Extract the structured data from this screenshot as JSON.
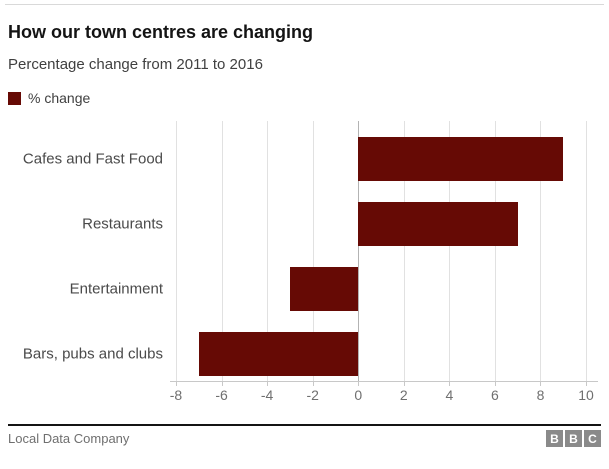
{
  "header": {
    "title": "How our town centres are changing",
    "subtitle": "Percentage change from 2011 to 2016"
  },
  "legend": {
    "label": "% change"
  },
  "chart_data": {
    "type": "bar",
    "orientation": "horizontal",
    "title": "How our town centres are changing",
    "subtitle": "Percentage change from 2011 to 2016",
    "categories": [
      "Cafes and Fast Food",
      "Restaurants",
      "Entertainment",
      "Bars, pubs and clubs"
    ],
    "series": [
      {
        "name": "% change",
        "values": [
          9,
          7,
          -3,
          -7
        ]
      }
    ],
    "xlabel": "",
    "ylabel": "",
    "xlim": [
      -8,
      10
    ],
    "xticks": [
      -8,
      -6,
      -4,
      -2,
      0,
      2,
      4,
      6,
      8,
      10
    ],
    "grid": true,
    "legend_position": "top-left",
    "bar_color": "#660a05"
  },
  "footer": {
    "source": "Local Data Company",
    "logo_letters": [
      "B",
      "B",
      "C"
    ]
  },
  "colors": {
    "bar": "#660a05",
    "grid": "#e1e1e1",
    "zero_line": "#b3b3b3",
    "axis": "#c8c8c8",
    "title_text": "#141414",
    "body_text": "#404040",
    "muted_text": "#6f6f6f",
    "logo_gray": "#8a8a8a",
    "divider": "#141414"
  }
}
